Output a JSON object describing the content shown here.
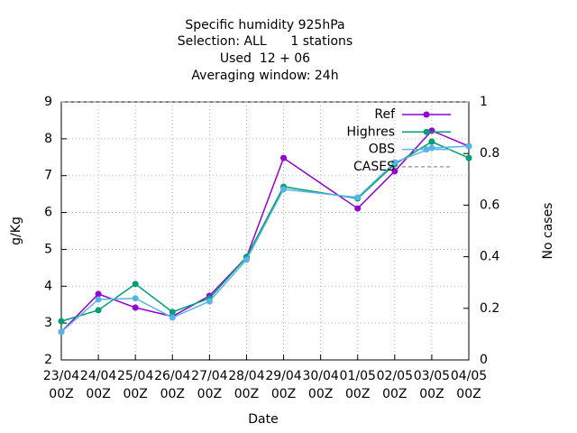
{
  "chart_data": {
    "type": "line",
    "title": [
      "Specific humidity 925hPa",
      "Selection: ALL      1 stations",
      "Used  12 + 06",
      "Averaging window: 24h"
    ],
    "xlabel": "Date",
    "ylabel": "g/Kg",
    "y2label": "No cases",
    "xticks": [
      "23/04 00Z",
      "24/04 00Z",
      "25/04 00Z",
      "26/04 00Z",
      "27/04 00Z",
      "28/04 00Z",
      "29/04 00Z",
      "30/04 00Z",
      "01/05 00Z",
      "02/05 00Z",
      "03/05 00Z",
      "04/05 00Z"
    ],
    "x": [
      "23/04 00Z",
      "24/04 00Z",
      "25/04 00Z",
      "26/04 00Z",
      "27/04 00Z",
      "28/04 00Z",
      "29/04 00Z",
      "01/05 00Z",
      "02/05 00Z",
      "03/05 00Z",
      "04/05 00Z"
    ],
    "ylim": [
      2,
      9
    ],
    "yticks": [
      2,
      3,
      4,
      5,
      6,
      7,
      8,
      9
    ],
    "y2lim": [
      0,
      1
    ],
    "y2ticks": [
      0,
      0.2,
      0.4,
      0.6,
      0.8,
      1
    ],
    "grid": true,
    "legend": "top-right",
    "series": [
      {
        "name": "Ref",
        "color": "#9400d3",
        "values": [
          2.76,
          3.79,
          3.42,
          3.18,
          3.74,
          4.79,
          7.48,
          6.11,
          7.12,
          8.22,
          7.8
        ]
      },
      {
        "name": "Highres",
        "color": "#009e73",
        "values": [
          3.05,
          3.35,
          4.06,
          3.3,
          3.67,
          4.79,
          6.7,
          6.38,
          7.31,
          7.92,
          7.48
        ]
      },
      {
        "name": "OBS",
        "color": "#56b4e9",
        "values": [
          2.76,
          3.64,
          3.67,
          3.15,
          3.59,
          4.72,
          6.63,
          6.41,
          7.36,
          7.75,
          7.8
        ]
      },
      {
        "name": "CASES",
        "color": "#a0a0a0",
        "dashed": true,
        "axis": "y2",
        "values": [
          1,
          1,
          1,
          1,
          1,
          1,
          1,
          1,
          1,
          1,
          1
        ]
      }
    ]
  }
}
